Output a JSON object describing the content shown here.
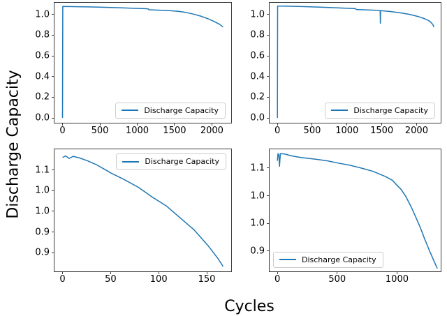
{
  "figure": {
    "ylabel": "Discharge Capacity",
    "xlabel": "Cycles"
  },
  "colors": {
    "line": "#1f77b4",
    "spine": "#3c3c3c",
    "text": "#000000",
    "legend_border": "#cccccc",
    "legend_bg": "#ffffff"
  },
  "chart_data": [
    {
      "id": "top-left",
      "type": "line",
      "grid": false,
      "legend": {
        "label": "Discharge Capacity",
        "position": "lower-right"
      },
      "xlim": [
        -108,
        2258
      ],
      "ylim": [
        -0.047,
        1.113
      ],
      "xticks": {
        "values": [
          0,
          500,
          1000,
          1500,
          2000
        ],
        "labels": [
          "0",
          "500",
          "1000",
          "1500",
          "2000"
        ]
      },
      "yticks": {
        "values": [
          0.0,
          0.2,
          0.4,
          0.6,
          0.8,
          1.0
        ],
        "labels": [
          "0.0",
          "0.2",
          "0.4",
          "0.6",
          "0.8",
          "1.0"
        ]
      },
      "series": [
        {
          "name": "Discharge Capacity",
          "points": [
            [
              0,
              0.0
            ],
            [
              3,
              1.077
            ],
            [
              80,
              1.0765
            ],
            [
              200,
              1.0755
            ],
            [
              350,
              1.0735
            ],
            [
              500,
              1.071
            ],
            [
              650,
              1.068
            ],
            [
              800,
              1.064
            ],
            [
              950,
              1.06
            ],
            [
              1100,
              1.0565
            ],
            [
              1148,
              1.0545
            ],
            [
              1158,
              1.0455
            ],
            [
              1300,
              1.0415
            ],
            [
              1450,
              1.036
            ],
            [
              1550,
              1.03
            ],
            [
              1650,
              1.02
            ],
            [
              1750,
              1.004
            ],
            [
              1850,
              0.984
            ],
            [
              1950,
              0.958
            ],
            [
              2030,
              0.932
            ],
            [
              2100,
              0.906
            ],
            [
              2150,
              0.879
            ]
          ]
        }
      ]
    },
    {
      "id": "top-right",
      "type": "line",
      "grid": false,
      "legend": {
        "label": "Discharge Capacity",
        "position": "lower-right"
      },
      "xlim": [
        -112,
        2347
      ],
      "ylim": [
        -0.047,
        1.113
      ],
      "xticks": {
        "values": [
          0,
          500,
          1000,
          1500,
          2000
        ],
        "labels": [
          "0",
          "500",
          "1000",
          "1500",
          "2000"
        ]
      },
      "yticks": {
        "values": [
          0.0,
          0.2,
          0.4,
          0.6,
          0.8,
          1.0
        ],
        "labels": [
          "0.0",
          "0.2",
          "0.4",
          "0.6",
          "0.8",
          "1.0"
        ]
      },
      "series": [
        {
          "name": "Discharge Capacity",
          "points": [
            [
              0,
              0.0
            ],
            [
              3,
              1.081
            ],
            [
              80,
              1.0805
            ],
            [
              200,
              1.079
            ],
            [
              350,
              1.0765
            ],
            [
              500,
              1.0735
            ],
            [
              650,
              1.07
            ],
            [
              800,
              1.066
            ],
            [
              950,
              1.062
            ],
            [
              1100,
              1.058
            ],
            [
              1125,
              1.0565
            ],
            [
              1133,
              1.048
            ],
            [
              1300,
              1.0445
            ],
            [
              1450,
              1.0395
            ],
            [
              1477,
              1.0375
            ],
            [
              1480,
              0.916
            ],
            [
              1483,
              1.037
            ],
            [
              1600,
              1.03
            ],
            [
              1750,
              1.018
            ],
            [
              1900,
              1.001
            ],
            [
              2020,
              0.981
            ],
            [
              2120,
              0.958
            ],
            [
              2190,
              0.935
            ],
            [
              2235,
              0.902
            ],
            [
              2250,
              0.878
            ]
          ]
        }
      ]
    },
    {
      "id": "bottom-left",
      "type": "line",
      "grid": false,
      "legend": {
        "label": "Discharge Capacity",
        "position": "upper-right"
      },
      "xlim": [
        -8.4,
        175.4
      ],
      "ylim": [
        0.855,
        1.15
      ],
      "xticks": {
        "values": [
          0,
          50,
          100,
          150
        ],
        "labels": [
          "0",
          "50",
          "100",
          "150"
        ]
      },
      "yticks": {
        "values": [
          0.9,
          0.95,
          1.0,
          1.05,
          1.1
        ],
        "labels": [
          "0.9",
          "0.9",
          "1.0",
          "1.0",
          "1.1"
        ]
      },
      "series": [
        {
          "name": "Discharge Capacity",
          "points": [
            [
              0,
              1.13
            ],
            [
              3,
              1.134
            ],
            [
              7,
              1.128
            ],
            [
              11,
              1.133
            ],
            [
              18,
              1.129
            ],
            [
              26,
              1.122
            ],
            [
              35,
              1.113
            ],
            [
              45,
              1.1
            ],
            [
              50,
              1.093
            ],
            [
              64,
              1.077
            ],
            [
              79,
              1.058
            ],
            [
              93,
              1.035
            ],
            [
              108,
              1.013
            ],
            [
              122,
              0.985
            ],
            [
              137,
              0.955
            ],
            [
              151,
              0.918
            ],
            [
              161,
              0.888
            ],
            [
              167,
              0.867
            ]
          ]
        }
      ]
    },
    {
      "id": "bottom-right",
      "type": "line",
      "grid": false,
      "legend": {
        "label": "Discharge Capacity",
        "position": "lower-left"
      },
      "xlim": [
        -65,
        1365
      ],
      "ylim": [
        0.913,
        1.134
      ],
      "xticks": {
        "values": [
          0,
          500,
          1000
        ],
        "labels": [
          "0",
          "500",
          "1000"
        ]
      },
      "yticks": {
        "values": [
          0.95,
          1.0,
          1.05,
          1.1
        ],
        "labels": [
          "0.9",
          "1.0",
          "1.0",
          "1.1"
        ]
      },
      "series": [
        {
          "name": "Discharge Capacity",
          "points": [
            [
              0,
              1.113
            ],
            [
              5,
              1.126
            ],
            [
              12,
              1.124
            ],
            [
              18,
              1.103
            ],
            [
              25,
              1.126
            ],
            [
              60,
              1.1255
            ],
            [
              120,
              1.122
            ],
            [
              200,
              1.119
            ],
            [
              320,
              1.116
            ],
            [
              420,
              1.113
            ],
            [
              510,
              1.109
            ],
            [
              610,
              1.105
            ],
            [
              700,
              1.1
            ],
            [
              800,
              1.094
            ],
            [
              900,
              1.085
            ],
            [
              960,
              1.078
            ],
            [
              995,
              1.07
            ],
            [
              1035,
              1.061
            ],
            [
              1075,
              1.048
            ],
            [
              1115,
              1.031
            ],
            [
              1155,
              1.012
            ],
            [
              1195,
              0.992
            ],
            [
              1230,
              0.972
            ],
            [
              1270,
              0.951
            ],
            [
              1310,
              0.931
            ],
            [
              1337,
              0.918
            ]
          ]
        }
      ]
    }
  ]
}
